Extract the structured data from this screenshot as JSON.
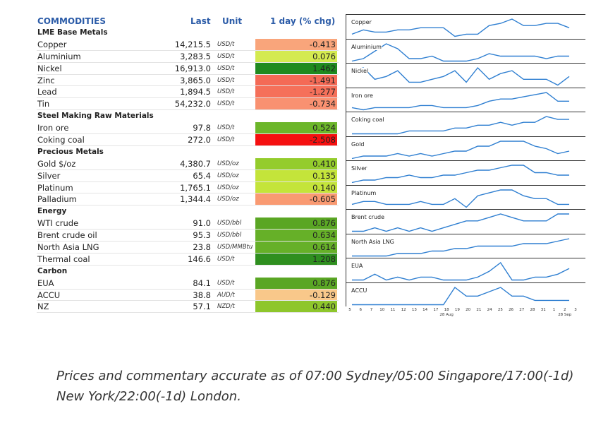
{
  "header": {
    "title": "COMMODITIES",
    "last": "Last",
    "unit": "Unit",
    "chg": "1 day (% chg)"
  },
  "rows": [
    {
      "type": "section",
      "name": "LME Base Metals"
    },
    {
      "name": "Copper",
      "last": "14,215.5",
      "unit": "USD/t",
      "chg": "-0.413",
      "color": "#f9a57b"
    },
    {
      "name": "Aluminium",
      "last": "3,283.5",
      "unit": "USD/t",
      "chg": "0.076",
      "color": "#d4ea50"
    },
    {
      "name": "Nickel",
      "last": "16,913.0",
      "unit": "USD/t",
      "chg": "1.462",
      "color": "#1f8a1f"
    },
    {
      "name": "Zinc",
      "last": "3,865.0",
      "unit": "USD/t",
      "chg": "-1.491",
      "color": "#f46a56"
    },
    {
      "name": "Lead",
      "last": "1,894.5",
      "unit": "USD/t",
      "chg": "-1.277",
      "color": "#f5705a"
    },
    {
      "name": "Tin",
      "last": "54,232.0",
      "unit": "USD/t",
      "chg": "-0.734",
      "color": "#f99171"
    },
    {
      "type": "section",
      "name": "Steel Making Raw Materials"
    },
    {
      "name": "Iron ore",
      "last": "97.8",
      "unit": "USD/t",
      "chg": "0.524",
      "color": "#6cb62a"
    },
    {
      "name": "Coking coal",
      "last": "272.0",
      "unit": "USD/t",
      "chg": "-2.508",
      "color": "#f51010"
    },
    {
      "type": "section",
      "name": "Precious Metals"
    },
    {
      "name": "Gold $/oz",
      "last": "4,380.7",
      "unit": "USD/oz",
      "chg": "0.410",
      "color": "#94cc2c"
    },
    {
      "name": "Silver",
      "last": "65.4",
      "unit": "USD/oz",
      "chg": "0.135",
      "color": "#c4e43a"
    },
    {
      "name": "Platinum",
      "last": "1,765.1",
      "unit": "USD/oz",
      "chg": "0.140",
      "color": "#c4e43a"
    },
    {
      "name": "Palladium",
      "last": "1,344.4",
      "unit": "USD/oz",
      "chg": "-0.605",
      "color": "#f99a72"
    },
    {
      "type": "section",
      "name": "Energy"
    },
    {
      "name": "WTI crude",
      "last": "91.0",
      "unit": "USD/bbl",
      "chg": "0.876",
      "color": "#5aa624"
    },
    {
      "name": "Brent crude oil",
      "last": "95.3",
      "unit": "USD/bbl",
      "chg": "0.634",
      "color": "#66b028"
    },
    {
      "name": "North Asia LNG",
      "last": "23.8",
      "unit": "USD/MMBtu",
      "chg": "0.614",
      "color": "#66b028"
    },
    {
      "name": "Thermal coal",
      "last": "146.6",
      "unit": "USD/t",
      "chg": "1.208",
      "color": "#2f8f1f"
    },
    {
      "type": "section",
      "name": "Carbon"
    },
    {
      "name": "EUA",
      "last": "84.1",
      "unit": "USD/t",
      "chg": "0.876",
      "color": "#5aa624"
    },
    {
      "name": "ACCU",
      "last": "38.8",
      "unit": "AUD/t",
      "chg": "-0.129",
      "color": "#f9c88a"
    },
    {
      "name": "NZ",
      "last": "57.1",
      "unit": "NZD/t",
      "chg": "0.440",
      "color": "#8ec62c"
    }
  ],
  "sparklines": [
    {
      "label": "Copper",
      "values": [
        2,
        4,
        3,
        3,
        4,
        4,
        5,
        5,
        5,
        1,
        2,
        2,
        6,
        7,
        9,
        6,
        6,
        7,
        7,
        5
      ]
    },
    {
      "label": "Aluminium",
      "values": [
        2,
        3,
        6,
        9,
        7,
        3,
        3,
        4,
        2,
        2,
        2,
        3,
        5,
        4,
        4,
        4,
        4,
        3,
        4,
        4
      ]
    },
    {
      "label": "Nickel",
      "values": [
        6,
        7,
        3,
        4,
        6,
        2,
        2,
        3,
        4,
        6,
        2,
        7,
        3,
        5,
        6,
        3,
        3,
        3,
        1,
        4
      ]
    },
    {
      "label": "Iron ore",
      "values": [
        2,
        1,
        2,
        2,
        2,
        2,
        3,
        3,
        2,
        2,
        2,
        3,
        5,
        6,
        6,
        7,
        8,
        9,
        5,
        5
      ]
    },
    {
      "label": "Coking coal",
      "values": [
        1,
        1,
        1,
        1,
        1,
        2,
        2,
        2,
        2,
        3,
        3,
        4,
        4,
        5,
        4,
        5,
        5,
        7,
        6,
        6
      ]
    },
    {
      "label": "Gold",
      "values": [
        2,
        3,
        3,
        3,
        4,
        3,
        4,
        3,
        4,
        5,
        5,
        7,
        7,
        9,
        9,
        9,
        7,
        6,
        4,
        5
      ]
    },
    {
      "label": "Silver",
      "values": [
        1,
        2,
        2,
        3,
        3,
        4,
        3,
        3,
        4,
        4,
        5,
        6,
        6,
        7,
        8,
        8,
        5,
        5,
        4,
        4
      ]
    },
    {
      "label": "Platinum",
      "values": [
        3,
        4,
        4,
        3,
        3,
        3,
        4,
        3,
        3,
        5,
        2,
        6,
        7,
        8,
        8,
        6,
        5,
        5,
        3,
        3
      ]
    },
    {
      "label": "Brent crude",
      "values": [
        2,
        2,
        3,
        2,
        3,
        2,
        3,
        2,
        3,
        4,
        5,
        5,
        6,
        7,
        6,
        5,
        5,
        5,
        7,
        7
      ]
    },
    {
      "label": "North Asia LNG",
      "values": [
        2,
        2,
        2,
        2,
        3,
        3,
        3,
        4,
        4,
        5,
        5,
        6,
        6,
        6,
        6,
        7,
        7,
        7,
        8,
        9
      ]
    },
    {
      "label": "EUA",
      "values": [
        3,
        3,
        5,
        3,
        4,
        3,
        4,
        4,
        3,
        3,
        3,
        4,
        6,
        9,
        3,
        3,
        4,
        4,
        5,
        7
      ]
    },
    {
      "label": "ACCU",
      "values": [
        2,
        2,
        2,
        2,
        2,
        2,
        2,
        2,
        2,
        6,
        4,
        4,
        5,
        6,
        4,
        4,
        3,
        3,
        3,
        3
      ]
    }
  ],
  "xaxis": {
    "ticks": [
      "5",
      "6",
      "7",
      "10",
      "11",
      "12",
      "13",
      "14",
      "17",
      "18",
      "19",
      "20",
      "21",
      "24",
      "25",
      "26",
      "27",
      "28",
      "31",
      "1",
      "2",
      "3"
    ],
    "months": [
      {
        "label": "Aug",
        "at": 9
      },
      {
        "label": "Sep",
        "at": 20
      }
    ],
    "sub": [
      {
        "label": "28 Aug",
        "at": 9
      },
      {
        "label": "28 Sep",
        "at": 20
      }
    ]
  },
  "footer": {
    "line1": "Prices and commentary accurate as of 07:00 Sydney/05:00 Singapore/17:00(-1d)",
    "line2": "New York/22:00(-1d) London."
  }
}
